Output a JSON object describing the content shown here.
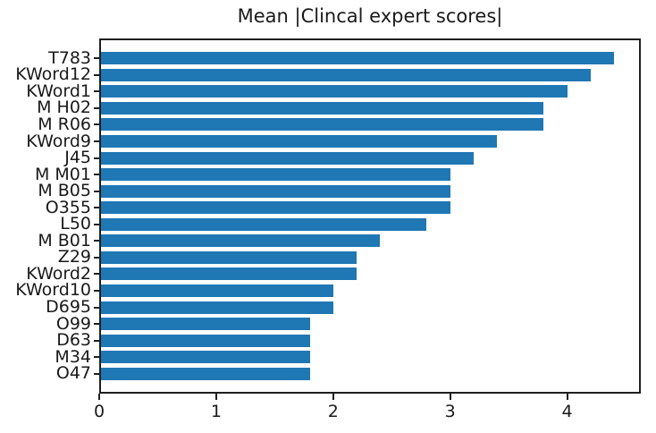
{
  "chart_data": {
    "type": "bar",
    "orientation": "horizontal",
    "title": "Mean |Clincal expert scores|",
    "categories": [
      "T783",
      "KWord12",
      "KWord1",
      "M H02",
      "M R06",
      "KWord9",
      "J45",
      "M M01",
      "M B05",
      "O355",
      "L50",
      "M B01",
      "Z29",
      "KWord2",
      "KWord10",
      "D695",
      "O99",
      "D63",
      "M34",
      "O47"
    ],
    "values": [
      4.4,
      4.2,
      4.0,
      3.8,
      3.8,
      3.4,
      3.2,
      3.0,
      3.0,
      3.0,
      2.8,
      2.4,
      2.2,
      2.2,
      2.0,
      2.0,
      1.8,
      1.8,
      1.8,
      1.8
    ],
    "xlabel": "",
    "ylabel": "",
    "xlim": [
      0,
      4.63
    ],
    "xticks": [
      "0",
      "1",
      "2",
      "3",
      "4"
    ],
    "bar_color": "#1f77b4",
    "spine_color": "#1f1f1f",
    "grid": false,
    "legend_position": "none"
  }
}
